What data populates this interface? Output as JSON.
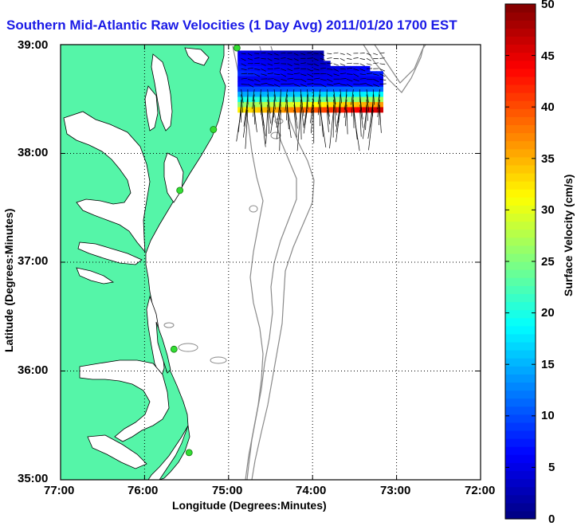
{
  "title": "Southern Mid-Atlantic Raw Velocities (1 Day Avg) 2011/01/20 1700 EST",
  "map": {
    "xlabel": "Longitude (Degrees:Minutes)",
    "ylabel": "Latitude (Degrees:Minutes)",
    "xticks": [
      "77:00",
      "76:00",
      "75:00",
      "74:00",
      "73:00",
      "72:00"
    ],
    "yticks": [
      "39:00",
      "38:00",
      "37:00",
      "36:00",
      "35:00"
    ],
    "lon_range": [
      -77,
      -72
    ],
    "lat_range": [
      35,
      39
    ],
    "grid": "dotted",
    "land_color": "#55f5a8",
    "water_color": "#ffffff",
    "bathymetry_color": "#8a8a8a",
    "station_color": "#33dd33"
  },
  "colorbar": {
    "label": "Surface Velocity (cm/s)",
    "ticks": [
      "50",
      "45",
      "40",
      "35",
      "30",
      "25",
      "20",
      "15",
      "10",
      "5",
      "0"
    ],
    "min": 0,
    "max": 50,
    "colormap": "jet"
  },
  "chart_data": {
    "type": "quiver",
    "title": "Southern Mid-Atlantic Raw Velocities (1 Day Avg) 2011/01/20 1700 EST",
    "xlabel": "Longitude (Degrees:Minutes)",
    "ylabel": "Latitude (Degrees:Minutes)",
    "xlim": [
      -77,
      -72
    ],
    "ylim": [
      35,
      39
    ],
    "colorbar_range_cm_s": [
      0,
      50
    ],
    "stations": [
      {
        "lon": -74.9,
        "lat": 38.97
      },
      {
        "lon": -75.18,
        "lat": 38.22
      },
      {
        "lon": -75.58,
        "lat": 37.66
      },
      {
        "lon": -75.65,
        "lat": 36.2
      },
      {
        "lon": -75.47,
        "lat": 35.25
      }
    ],
    "velocity_field_region": {
      "lon": [
        -74.85,
        -73.2
      ],
      "lat": [
        38.4,
        38.92
      ]
    },
    "speed_summary": "low speeds (0-10 cm/s) in northern part, increasing to 40-50 cm/s along southern edge with southward flow"
  }
}
